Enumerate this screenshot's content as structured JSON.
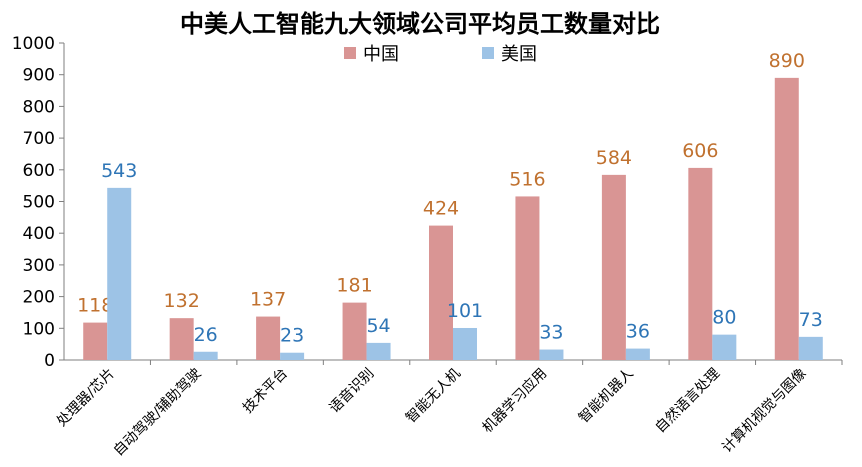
{
  "chart_data": {
    "type": "bar",
    "title": "中美人工智能九大领域公司平均员工数量对比",
    "categories": [
      "处理器/芯片",
      "自动驾驶/辅助驾驶",
      "技术平台",
      "语音识别",
      "智能无人机",
      "机器学习应用",
      "智能机器人",
      "自然语言处理",
      "计算机视觉与图像"
    ],
    "series": [
      {
        "name": "中国",
        "values": [
          118,
          132,
          137,
          181,
          424,
          516,
          584,
          606,
          890
        ],
        "color": "#D99594",
        "label_color": "#C0712F"
      },
      {
        "name": "美国",
        "values": [
          543,
          26,
          23,
          54,
          101,
          33,
          36,
          80,
          73
        ],
        "color": "#9DC3E6",
        "label_color": "#2E75B6"
      }
    ],
    "ylim": [
      0,
      1000
    ],
    "yticks": [
      0,
      100,
      200,
      300,
      400,
      500,
      600,
      700,
      800,
      900,
      1000
    ],
    "grid": false,
    "legend_position": "top-center"
  }
}
